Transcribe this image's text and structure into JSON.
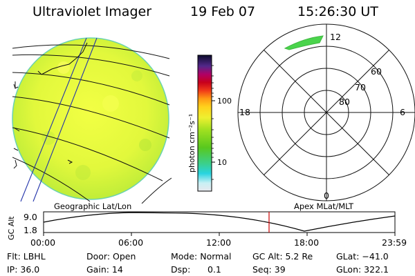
{
  "header": {
    "instrument": "Ultraviolet Imager",
    "date": "19 Feb 07",
    "time": "15:26:30 UT"
  },
  "colorbar": {
    "unit_label": "photon cm⁻²s⁻¹",
    "ticks": [
      "100",
      "10"
    ],
    "scale": "log"
  },
  "polar_plot": {
    "mlt_labels": [
      "12",
      "18",
      "6",
      "0"
    ],
    "lat_labels": [
      "60",
      "70",
      "80"
    ]
  },
  "map_captions": {
    "left": "Geographic Lat/Lon",
    "right": "Apex MLat/MLT"
  },
  "altitude_strip": {
    "ylabel": "GC Alt",
    "ymax": "9.0",
    "ymin": "1.8",
    "time_ticks": [
      "00:00",
      "06:00",
      "12:00",
      "18:00",
      "23:59"
    ],
    "marker_time": "15:26:30",
    "marker_color": "#cc0000"
  },
  "footer": {
    "flt": "Flt: LBHL",
    "door": "Door: Open",
    "mode": "Mode: Normal",
    "gcalt": "GC Alt: 5.2 Re",
    "glat": "GLat: −41.0",
    "ip": "IP: 36.0",
    "gain": "Gain: 14",
    "dsp_label": "Dsp:",
    "dsp_value": "0.1",
    "seq": "Seq: 39",
    "glon": "GLon: 322.1"
  }
}
